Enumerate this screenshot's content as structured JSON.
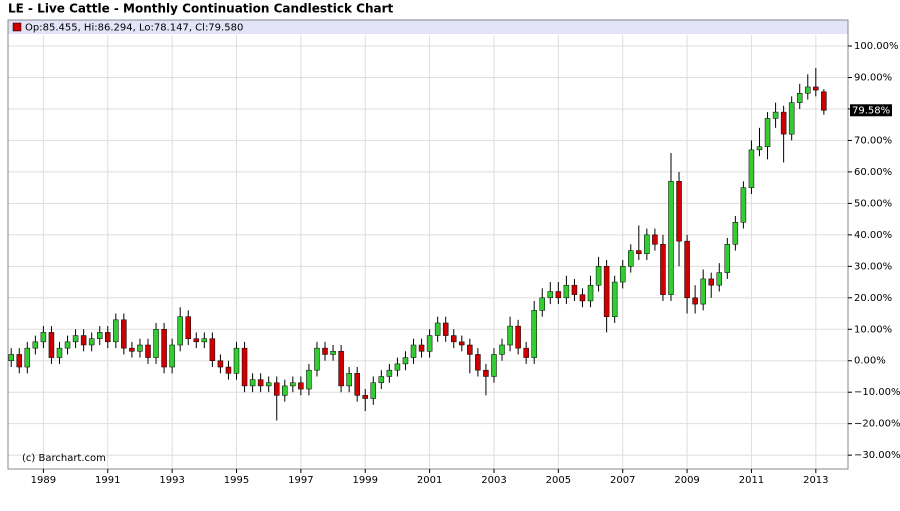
{
  "chart_data": {
    "type": "candlestick",
    "title": "LE - Live Cattle - Monthly Continuation Candlestick Chart",
    "legend_text": "Op:85.455, Hi:86.294, Lo:78.147, Cl:79.580",
    "last_label": "79.58%",
    "credit": "(c) Barchart.com",
    "up_color": "#33cc33",
    "down_color": "#cc0000",
    "grid": true,
    "xlim": [
      1987.9,
      2014.0
    ],
    "xticks": [
      1989,
      1991,
      1993,
      1995,
      1997,
      1999,
      2001,
      2003,
      2005,
      2007,
      2009,
      2011,
      2013
    ],
    "ylim": [
      -34.4,
      103.5
    ],
    "yticks": [
      {
        "value": -30,
        "label": "−30.00%"
      },
      {
        "value": -20,
        "label": "−20.00%"
      },
      {
        "value": -10,
        "label": "−10.00%"
      },
      {
        "value": 0,
        "label": "0.00%"
      },
      {
        "value": 10,
        "label": "10.00%"
      },
      {
        "value": 20,
        "label": "20.00%"
      },
      {
        "value": 30,
        "label": "30.00%"
      },
      {
        "value": 40,
        "label": "40.00%"
      },
      {
        "value": 50,
        "label": "50.00%"
      },
      {
        "value": 60,
        "label": "60.00%"
      },
      {
        "value": 70,
        "label": "70.00%"
      },
      {
        "value": 80,
        "label": "80.00%"
      },
      {
        "value": 90,
        "label": "90.00%"
      },
      {
        "value": 100,
        "label": "100.00%"
      }
    ],
    "x": [
      1988,
      1988.25,
      1988.5,
      1988.75,
      1989,
      1989.25,
      1989.5,
      1989.75,
      1990,
      1990.25,
      1990.5,
      1990.75,
      1991,
      1991.25,
      1991.5,
      1991.75,
      1992,
      1992.25,
      1992.5,
      1992.75,
      1993,
      1993.25,
      1993.5,
      1993.75,
      1994,
      1994.25,
      1994.5,
      1994.75,
      1995,
      1995.25,
      1995.5,
      1995.75,
      1996,
      1996.25,
      1996.5,
      1996.75,
      1997,
      1997.25,
      1997.5,
      1997.75,
      1998,
      1998.25,
      1998.5,
      1998.75,
      1999,
      1999.25,
      1999.5,
      1999.75,
      2000,
      2000.25,
      2000.5,
      2000.75,
      2001,
      2001.25,
      2001.5,
      2001.75,
      2002,
      2002.25,
      2002.5,
      2002.75,
      2003,
      2003.25,
      2003.5,
      2003.75,
      2004,
      2004.25,
      2004.5,
      2004.75,
      2005,
      2005.25,
      2005.5,
      2005.75,
      2006,
      2006.25,
      2006.5,
      2006.75,
      2007,
      2007.25,
      2007.5,
      2007.75,
      2008,
      2008.25,
      2008.5,
      2008.75,
      2009,
      2009.25,
      2009.5,
      2009.75,
      2010,
      2010.25,
      2010.5,
      2010.75,
      2011,
      2011.25,
      2011.5,
      2011.75,
      2012,
      2012.25,
      2012.5,
      2012.75,
      2013,
      2013.25
    ],
    "open": [
      0,
      2,
      -2,
      4,
      6,
      9,
      1,
      4,
      6,
      8,
      5,
      7,
      9,
      6,
      13,
      4,
      3,
      5,
      1,
      10,
      -2,
      5,
      14,
      7,
      6,
      7,
      0,
      -2,
      -4,
      4,
      -8,
      -6,
      -8,
      -7,
      -11,
      -8,
      -7,
      -9,
      -3,
      4,
      2,
      3,
      -8,
      -4,
      -11,
      -12,
      -7,
      -5,
      -3,
      -1,
      1,
      5,
      3,
      8,
      12,
      8,
      6,
      5,
      2,
      -3,
      -5,
      2,
      5,
      11,
      4,
      1,
      16,
      20,
      22,
      20,
      24,
      21,
      19,
      24,
      30,
      14,
      25,
      30,
      35,
      34,
      40,
      37,
      21,
      57,
      38,
      20,
      18,
      26,
      24,
      28,
      37,
      44,
      55,
      67,
      68,
      77,
      79,
      72,
      82,
      85,
      87,
      85.455
    ],
    "high": [
      4,
      4,
      6,
      8,
      11,
      11,
      6,
      8,
      10,
      10,
      9,
      11,
      11,
      15,
      15,
      6,
      7,
      7,
      12,
      12,
      7,
      17,
      16,
      9,
      9,
      9,
      2,
      0,
      6,
      6,
      -4,
      -4,
      -5,
      -5,
      -6,
      -5,
      -5,
      -1,
      6,
      6,
      5,
      5,
      -2,
      -2,
      -9,
      -5,
      -3,
      -1,
      1,
      3,
      7,
      7,
      10,
      14,
      14,
      10,
      8,
      7,
      4,
      -1,
      4,
      7,
      14,
      13,
      6,
      19,
      23,
      25,
      25,
      27,
      26,
      23,
      27,
      33,
      32,
      27,
      32,
      37,
      43,
      42,
      42,
      40,
      66,
      60,
      40,
      24,
      29,
      28,
      31,
      39,
      46,
      57,
      70,
      74,
      79,
      82,
      81,
      84,
      88,
      91,
      93,
      86.294
    ],
    "low": [
      -2,
      -4,
      -4,
      2,
      4,
      -1,
      -1,
      2,
      4,
      3,
      3,
      5,
      4,
      4,
      2,
      1,
      1,
      -1,
      -1,
      -4,
      -4,
      3,
      5,
      4,
      4,
      -2,
      -4,
      -6,
      -6,
      -10,
      -10,
      -10,
      -10,
      -19,
      -13,
      -10,
      -11,
      -11,
      -5,
      0,
      0,
      -10,
      -10,
      -13,
      -16,
      -14,
      -9,
      -7,
      -5,
      -3,
      -1,
      1,
      1,
      6,
      6,
      4,
      3,
      -4,
      -5,
      -11,
      -7,
      0,
      3,
      2,
      -1,
      -1,
      14,
      18,
      18,
      18,
      19,
      17,
      17,
      22,
      9,
      12,
      23,
      28,
      32,
      32,
      35,
      19,
      19,
      30,
      15,
      15,
      16,
      20,
      22,
      26,
      35,
      42,
      53,
      65,
      64,
      74,
      63,
      70,
      80,
      83,
      84,
      78.147
    ],
    "close": [
      2,
      -2,
      4,
      6,
      9,
      1,
      4,
      6,
      8,
      5,
      7,
      9,
      6,
      13,
      4,
      3,
      5,
      1,
      10,
      -2,
      5,
      14,
      7,
      6,
      7,
      0,
      -2,
      -4,
      4,
      -8,
      -6,
      -8,
      -7,
      -11,
      -8,
      -7,
      -9,
      -3,
      4,
      2,
      3,
      -8,
      -4,
      -11,
      -12,
      -7,
      -5,
      -3,
      -1,
      1,
      5,
      3,
      8,
      12,
      8,
      6,
      5,
      2,
      -3,
      -5,
      2,
      5,
      11,
      4,
      1,
      16,
      20,
      22,
      20,
      24,
      21,
      19,
      24,
      30,
      14,
      25,
      30,
      35,
      34,
      40,
      37,
      21,
      57,
      38,
      20,
      18,
      26,
      24,
      28,
      37,
      44,
      55,
      67,
      68,
      77,
      79,
      72,
      82,
      85,
      87,
      86,
      79.58
    ]
  }
}
